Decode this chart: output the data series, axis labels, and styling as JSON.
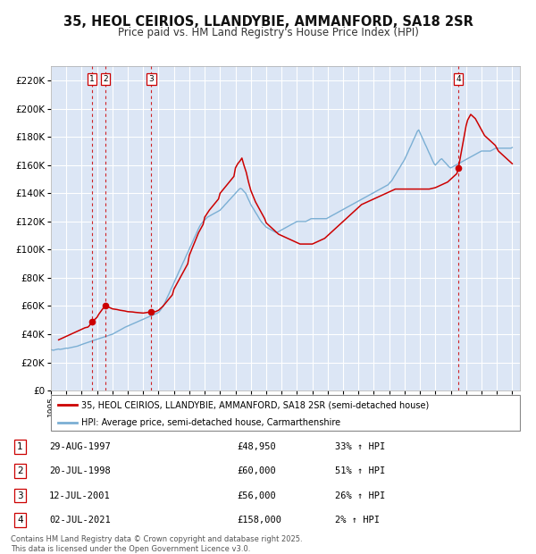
{
  "title": "35, HEOL CEIRIOS, LLANDYBIE, AMMANFORD, SA18 2SR",
  "subtitle": "Price paid vs. HM Land Registry's House Price Index (HPI)",
  "ylim": [
    0,
    230000
  ],
  "yticks": [
    0,
    20000,
    40000,
    60000,
    80000,
    100000,
    120000,
    140000,
    160000,
    180000,
    200000,
    220000
  ],
  "xlim_start": 1995.0,
  "xlim_end": 2025.5,
  "transactions": [
    {
      "label": "1",
      "date": "29-AUG-1997",
      "year": 1997.66,
      "price": 48950,
      "pct": "33%",
      "dir": "↑"
    },
    {
      "label": "2",
      "date": "20-JUL-1998",
      "year": 1998.55,
      "price": 60000,
      "pct": "51%",
      "dir": "↑"
    },
    {
      "label": "3",
      "date": "12-JUL-2001",
      "year": 2001.53,
      "price": 56000,
      "pct": "26%",
      "dir": "↑"
    },
    {
      "label": "4",
      "date": "02-JUL-2021",
      "year": 2021.5,
      "price": 158000,
      "pct": "2%",
      "dir": "↑"
    }
  ],
  "legend_label_red": "35, HEOL CEIRIOS, LLANDYBIE, AMMANFORD, SA18 2SR (semi-detached house)",
  "legend_label_blue": "HPI: Average price, semi-detached house, Carmarthenshire",
  "footer": "Contains HM Land Registry data © Crown copyright and database right 2025.\nThis data is licensed under the Open Government Licence v3.0.",
  "red_color": "#cc0000",
  "blue_color": "#7bafd4",
  "bg_color": "#dce6f5",
  "grid_color": "#ffffff",
  "title_fontsize": 10.5,
  "subtitle_fontsize": 8.5,
  "hpi_years": [
    1995.0,
    1995.08,
    1995.17,
    1995.25,
    1995.33,
    1995.42,
    1995.5,
    1995.58,
    1995.67,
    1995.75,
    1995.83,
    1995.92,
    1996.0,
    1996.08,
    1996.17,
    1996.25,
    1996.33,
    1996.42,
    1996.5,
    1996.58,
    1996.67,
    1996.75,
    1996.83,
    1996.92,
    1997.0,
    1997.08,
    1997.17,
    1997.25,
    1997.33,
    1997.42,
    1997.5,
    1997.58,
    1997.67,
    1997.75,
    1997.83,
    1997.92,
    1998.0,
    1998.08,
    1998.17,
    1998.25,
    1998.33,
    1998.42,
    1998.5,
    1998.58,
    1998.67,
    1998.75,
    1998.83,
    1998.92,
    1999.0,
    1999.08,
    1999.17,
    1999.25,
    1999.33,
    1999.42,
    1999.5,
    1999.58,
    1999.67,
    1999.75,
    1999.83,
    1999.92,
    2000.0,
    2000.08,
    2000.17,
    2000.25,
    2000.33,
    2000.42,
    2000.5,
    2000.58,
    2000.67,
    2000.75,
    2000.83,
    2000.92,
    2001.0,
    2001.08,
    2001.17,
    2001.25,
    2001.33,
    2001.42,
    2001.5,
    2001.58,
    2001.67,
    2001.75,
    2001.83,
    2001.92,
    2002.0,
    2002.08,
    2002.17,
    2002.25,
    2002.33,
    2002.42,
    2002.5,
    2002.58,
    2002.67,
    2002.75,
    2002.83,
    2002.92,
    2003.0,
    2003.08,
    2003.17,
    2003.25,
    2003.33,
    2003.42,
    2003.5,
    2003.58,
    2003.67,
    2003.75,
    2003.83,
    2003.92,
    2004.0,
    2004.08,
    2004.17,
    2004.25,
    2004.33,
    2004.42,
    2004.5,
    2004.58,
    2004.67,
    2004.75,
    2004.83,
    2004.92,
    2005.0,
    2005.08,
    2005.17,
    2005.25,
    2005.33,
    2005.42,
    2005.5,
    2005.58,
    2005.67,
    2005.75,
    2005.83,
    2005.92,
    2006.0,
    2006.08,
    2006.17,
    2006.25,
    2006.33,
    2006.42,
    2006.5,
    2006.58,
    2006.67,
    2006.75,
    2006.83,
    2006.92,
    2007.0,
    2007.08,
    2007.17,
    2007.25,
    2007.33,
    2007.42,
    2007.5,
    2007.58,
    2007.67,
    2007.75,
    2007.83,
    2007.92,
    2008.0,
    2008.08,
    2008.17,
    2008.25,
    2008.33,
    2008.42,
    2008.5,
    2008.58,
    2008.67,
    2008.75,
    2008.83,
    2008.92,
    2009.0,
    2009.08,
    2009.17,
    2009.25,
    2009.33,
    2009.42,
    2009.5,
    2009.58,
    2009.67,
    2009.75,
    2009.83,
    2009.92,
    2010.0,
    2010.08,
    2010.17,
    2010.25,
    2010.33,
    2010.42,
    2010.5,
    2010.58,
    2010.67,
    2010.75,
    2010.83,
    2010.92,
    2011.0,
    2011.08,
    2011.17,
    2011.25,
    2011.33,
    2011.42,
    2011.5,
    2011.58,
    2011.67,
    2011.75,
    2011.83,
    2011.92,
    2012.0,
    2012.08,
    2012.17,
    2012.25,
    2012.33,
    2012.42,
    2012.5,
    2012.58,
    2012.67,
    2012.75,
    2012.83,
    2012.92,
    2013.0,
    2013.08,
    2013.17,
    2013.25,
    2013.33,
    2013.42,
    2013.5,
    2013.58,
    2013.67,
    2013.75,
    2013.83,
    2013.92,
    2014.0,
    2014.08,
    2014.17,
    2014.25,
    2014.33,
    2014.42,
    2014.5,
    2014.58,
    2014.67,
    2014.75,
    2014.83,
    2014.92,
    2015.0,
    2015.08,
    2015.17,
    2015.25,
    2015.33,
    2015.42,
    2015.5,
    2015.58,
    2015.67,
    2015.75,
    2015.83,
    2015.92,
    2016.0,
    2016.08,
    2016.17,
    2016.25,
    2016.33,
    2016.42,
    2016.5,
    2016.58,
    2016.67,
    2016.75,
    2016.83,
    2016.92,
    2017.0,
    2017.08,
    2017.17,
    2017.25,
    2017.33,
    2017.42,
    2017.5,
    2017.58,
    2017.67,
    2017.75,
    2017.83,
    2017.92,
    2018.0,
    2018.08,
    2018.17,
    2018.25,
    2018.33,
    2018.42,
    2018.5,
    2018.58,
    2018.67,
    2018.75,
    2018.83,
    2018.92,
    2019.0,
    2019.08,
    2019.17,
    2019.25,
    2019.33,
    2019.42,
    2019.5,
    2019.58,
    2019.67,
    2019.75,
    2019.83,
    2019.92,
    2020.0,
    2020.08,
    2020.17,
    2020.25,
    2020.33,
    2020.42,
    2020.5,
    2020.58,
    2020.67,
    2020.75,
    2020.83,
    2020.92,
    2021.0,
    2021.08,
    2021.17,
    2021.25,
    2021.33,
    2021.42,
    2021.5,
    2021.58,
    2021.67,
    2021.75,
    2021.83,
    2021.92,
    2022.0,
    2022.08,
    2022.17,
    2022.25,
    2022.33,
    2022.42,
    2022.5,
    2022.58,
    2022.67,
    2022.75,
    2022.83,
    2022.92,
    2023.0,
    2023.08,
    2023.17,
    2023.25,
    2023.33,
    2023.42,
    2023.5,
    2023.58,
    2023.67,
    2023.75,
    2023.83,
    2023.92,
    2024.0,
    2024.08,
    2024.17,
    2024.25,
    2024.33,
    2024.42,
    2024.5,
    2024.58,
    2024.67,
    2024.75,
    2024.83,
    2024.92,
    2025.0
  ],
  "hpi_values": [
    29000,
    28800,
    28600,
    28900,
    29100,
    29300,
    29500,
    29200,
    29400,
    29500,
    29700,
    29900,
    30100,
    30000,
    30200,
    30400,
    30600,
    30800,
    31000,
    31200,
    31400,
    31600,
    32000,
    32300,
    32700,
    33000,
    33400,
    33700,
    34000,
    34300,
    34600,
    34900,
    35200,
    35500,
    35800,
    36100,
    36400,
    36700,
    37000,
    37300,
    37600,
    37900,
    38200,
    38500,
    38800,
    39100,
    39400,
    39700,
    40000,
    40500,
    41000,
    41500,
    42000,
    42500,
    43000,
    43500,
    44000,
    44500,
    45000,
    45400,
    45800,
    46200,
    46600,
    47000,
    47400,
    47800,
    48200,
    48600,
    49000,
    49400,
    49800,
    50200,
    50600,
    51000,
    51400,
    51800,
    52200,
    52600,
    53000,
    53400,
    53800,
    54200,
    54600,
    55000,
    55500,
    56500,
    57800,
    59200,
    60800,
    62500,
    64500,
    66500,
    68500,
    70500,
    72500,
    74500,
    76500,
    78500,
    80500,
    82500,
    84500,
    86500,
    88500,
    90500,
    92500,
    94500,
    96500,
    98500,
    100500,
    102500,
    104500,
    106500,
    108500,
    110500,
    112500,
    114500,
    116500,
    118000,
    119000,
    120000,
    121000,
    122000,
    123000,
    123500,
    124000,
    124500,
    125000,
    125500,
    126000,
    126500,
    127000,
    127500,
    128000,
    129000,
    130000,
    131000,
    132000,
    133000,
    134000,
    135000,
    136000,
    137000,
    138000,
    139000,
    140000,
    141000,
    142000,
    143000,
    143500,
    143000,
    142000,
    141000,
    140000,
    138000,
    136000,
    134000,
    132000,
    130500,
    129000,
    127500,
    126000,
    124500,
    123000,
    121500,
    120000,
    119000,
    118000,
    117000,
    116000,
    115500,
    115000,
    114500,
    114000,
    113500,
    113000,
    112500,
    112000,
    112500,
    113000,
    113500,
    114000,
    114500,
    115000,
    115500,
    116000,
    116500,
    117000,
    117500,
    118000,
    118500,
    119000,
    119500,
    120000,
    120000,
    120000,
    120000,
    120000,
    120000,
    120000,
    120000,
    120500,
    121000,
    121500,
    122000,
    122000,
    122000,
    122000,
    122000,
    122000,
    122000,
    122000,
    122000,
    122000,
    122000,
    122000,
    122000,
    122500,
    123000,
    123500,
    124000,
    124500,
    125000,
    125500,
    126000,
    126500,
    127000,
    127500,
    128000,
    128500,
    129000,
    129500,
    130000,
    130500,
    131000,
    131500,
    132000,
    132500,
    133000,
    133500,
    134000,
    134500,
    135000,
    135500,
    136000,
    136500,
    137000,
    137500,
    138000,
    138500,
    139000,
    139500,
    140000,
    140500,
    141000,
    141500,
    142000,
    142500,
    143000,
    143500,
    144000,
    144500,
    145000,
    145500,
    146000,
    147000,
    148000,
    149000,
    150500,
    152000,
    153500,
    155000,
    156500,
    158000,
    159500,
    161000,
    162500,
    164000,
    166000,
    168000,
    170000,
    172000,
    174000,
    176000,
    178000,
    180000,
    182000,
    184000,
    185000,
    183000,
    181000,
    179000,
    177000,
    175000,
    173000,
    171000,
    169000,
    167000,
    165000,
    163000,
    161000,
    160000,
    161000,
    162000,
    163000,
    164000,
    164500,
    163500,
    162500,
    161500,
    160500,
    159500,
    158500,
    158000,
    158500,
    159000,
    159500,
    160000,
    160500,
    161000,
    161500,
    162000,
    162500,
    163000,
    163500,
    164000,
    164500,
    165000,
    165500,
    166000,
    166500,
    167000,
    167500,
    168000,
    168500,
    169000,
    169500,
    170000,
    170000,
    170000,
    170000,
    170000,
    170000,
    170000,
    170000,
    170500,
    171000,
    171500,
    172000,
    172000,
    172000,
    172000,
    172000,
    172000,
    172000,
    172000,
    172000,
    172000,
    172000,
    172000,
    172000,
    172500
  ],
  "red_years": [
    1995.5,
    1995.6,
    1995.7,
    1995.8,
    1995.9,
    1996.0,
    1996.1,
    1996.2,
    1996.3,
    1996.4,
    1996.5,
    1996.6,
    1996.7,
    1996.8,
    1996.9,
    1997.0,
    1997.1,
    1997.2,
    1997.3,
    1997.4,
    1997.5,
    1997.66,
    1997.7,
    1997.8,
    1997.9,
    1998.0,
    1998.1,
    1998.2,
    1998.3,
    1998.4,
    1998.55,
    1998.6,
    1998.7,
    1998.8,
    1998.9,
    1999.0,
    1999.3,
    1999.5,
    1999.8,
    2000.0,
    2000.3,
    2000.5,
    2000.8,
    2001.0,
    2001.3,
    2001.53,
    2001.6,
    2001.8,
    2002.0,
    2002.3,
    2002.6,
    2002.9,
    2003.0,
    2003.3,
    2003.6,
    2003.9,
    2004.0,
    2004.3,
    2004.6,
    2004.9,
    2005.0,
    2005.3,
    2005.6,
    2005.9,
    2006.0,
    2006.3,
    2006.6,
    2006.9,
    2007.0,
    2007.15,
    2007.3,
    2007.42,
    2007.55,
    2007.7,
    2007.85,
    2008.0,
    2008.15,
    2008.3,
    2008.5,
    2008.7,
    2008.9,
    2009.0,
    2009.2,
    2009.4,
    2009.6,
    2009.8,
    2010.0,
    2010.2,
    2010.4,
    2010.6,
    2010.8,
    2011.0,
    2011.2,
    2011.4,
    2011.6,
    2011.8,
    2012.0,
    2012.2,
    2012.4,
    2012.6,
    2012.8,
    2013.0,
    2013.2,
    2013.4,
    2013.6,
    2013.8,
    2014.0,
    2014.2,
    2014.4,
    2014.6,
    2014.8,
    2015.0,
    2015.2,
    2015.4,
    2015.6,
    2015.8,
    2016.0,
    2016.2,
    2016.4,
    2016.6,
    2016.8,
    2017.0,
    2017.2,
    2017.4,
    2017.6,
    2017.8,
    2018.0,
    2018.2,
    2018.4,
    2018.6,
    2018.8,
    2019.0,
    2019.2,
    2019.4,
    2019.6,
    2019.8,
    2020.0,
    2020.2,
    2020.4,
    2020.6,
    2020.8,
    2021.0,
    2021.2,
    2021.4,
    2021.5,
    2021.6,
    2021.7,
    2021.8,
    2021.9,
    2022.0,
    2022.1,
    2022.2,
    2022.3,
    2022.4,
    2022.5,
    2022.6,
    2022.7,
    2022.8,
    2022.9,
    2023.0,
    2023.1,
    2023.2,
    2023.3,
    2023.4,
    2023.5,
    2023.6,
    2023.7,
    2023.8,
    2023.9,
    2024.0,
    2024.1,
    2024.2,
    2024.3,
    2024.4,
    2024.5,
    2024.6,
    2024.7,
    2024.8,
    2024.9,
    2025.0
  ],
  "red_values": [
    36000,
    36500,
    37000,
    37500,
    38000,
    38500,
    39000,
    39500,
    40000,
    40500,
    41000,
    41500,
    42000,
    42500,
    43000,
    43500,
    44000,
    44500,
    44800,
    45000,
    46000,
    48950,
    49500,
    50000,
    51000,
    52000,
    54000,
    55500,
    57000,
    58500,
    60000,
    60000,
    59500,
    59000,
    58500,
    58000,
    57500,
    57000,
    56500,
    56000,
    55800,
    55500,
    55200,
    55000,
    55500,
    56000,
    56000,
    56000,
    57000,
    60000,
    64000,
    68000,
    72000,
    78000,
    84000,
    90000,
    96000,
    104000,
    112000,
    118000,
    123000,
    128000,
    132000,
    136000,
    140000,
    144000,
    148000,
    152000,
    158000,
    161000,
    163000,
    165000,
    160000,
    155000,
    148000,
    142000,
    138000,
    134000,
    130000,
    126000,
    122000,
    119000,
    117000,
    115000,
    113000,
    111000,
    110000,
    109000,
    108000,
    107000,
    106000,
    105000,
    104000,
    104000,
    104000,
    104000,
    104000,
    105000,
    106000,
    107000,
    108000,
    110000,
    112000,
    114000,
    116000,
    118000,
    120000,
    122000,
    124000,
    126000,
    128000,
    130000,
    132000,
    133000,
    134000,
    135000,
    136000,
    137000,
    138000,
    139000,
    140000,
    141000,
    142000,
    143000,
    143000,
    143000,
    143000,
    143000,
    143000,
    143000,
    143000,
    143000,
    143000,
    143000,
    143000,
    143500,
    144000,
    145000,
    146000,
    147000,
    148000,
    150000,
    152000,
    154000,
    158000,
    164000,
    170000,
    176000,
    182000,
    188000,
    192000,
    194000,
    196000,
    195000,
    194000,
    193000,
    191000,
    189000,
    187000,
    185000,
    183000,
    181000,
    180000,
    179000,
    178000,
    177000,
    176000,
    175000,
    174000,
    172000,
    170000,
    169000,
    168000,
    167000,
    166000,
    165000,
    164000,
    163000,
    162000,
    161000
  ]
}
